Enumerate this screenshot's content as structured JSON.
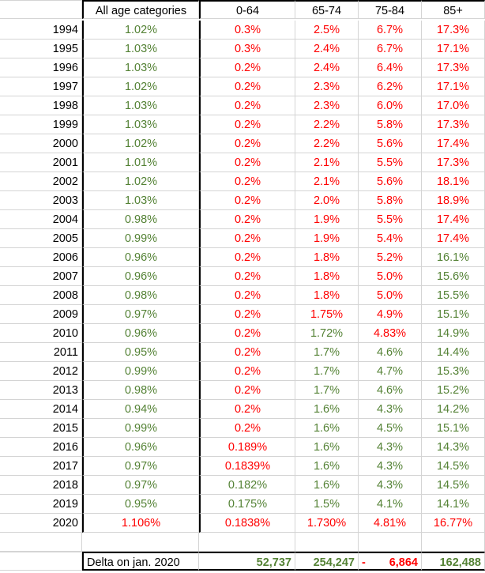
{
  "header": [
    "",
    "All age categories",
    "0-64",
    "65-74",
    "75-84",
    "85+"
  ],
  "colors": {
    "red": "#ff0000",
    "green": "#548235",
    "black": "#000000"
  },
  "rows": [
    {
      "year": "1994",
      "cells": [
        {
          "v": "1.02%",
          "c": "g"
        },
        {
          "v": "0.3%",
          "c": "r"
        },
        {
          "v": "2.5%",
          "c": "r"
        },
        {
          "v": "6.7%",
          "c": "r"
        },
        {
          "v": "17.3%",
          "c": "r"
        }
      ]
    },
    {
      "year": "1995",
      "cells": [
        {
          "v": "1.03%",
          "c": "g"
        },
        {
          "v": "0.3%",
          "c": "r"
        },
        {
          "v": "2.4%",
          "c": "r"
        },
        {
          "v": "6.7%",
          "c": "r"
        },
        {
          "v": "17.1%",
          "c": "r"
        }
      ]
    },
    {
      "year": "1996",
      "cells": [
        {
          "v": "1.03%",
          "c": "g"
        },
        {
          "v": "0.2%",
          "c": "r"
        },
        {
          "v": "2.4%",
          "c": "r"
        },
        {
          "v": "6.4%",
          "c": "r"
        },
        {
          "v": "17.3%",
          "c": "r"
        }
      ]
    },
    {
      "year": "1997",
      "cells": [
        {
          "v": "1.02%",
          "c": "g"
        },
        {
          "v": "0.2%",
          "c": "r"
        },
        {
          "v": "2.3%",
          "c": "r"
        },
        {
          "v": "6.2%",
          "c": "r"
        },
        {
          "v": "17.1%",
          "c": "r"
        }
      ]
    },
    {
      "year": "1998",
      "cells": [
        {
          "v": "1.03%",
          "c": "g"
        },
        {
          "v": "0.2%",
          "c": "r"
        },
        {
          "v": "2.3%",
          "c": "r"
        },
        {
          "v": "6.0%",
          "c": "r"
        },
        {
          "v": "17.0%",
          "c": "r"
        }
      ]
    },
    {
      "year": "1999",
      "cells": [
        {
          "v": "1.03%",
          "c": "g"
        },
        {
          "v": "0.2%",
          "c": "r"
        },
        {
          "v": "2.2%",
          "c": "r"
        },
        {
          "v": "5.8%",
          "c": "r"
        },
        {
          "v": "17.3%",
          "c": "r"
        }
      ]
    },
    {
      "year": "2000",
      "cells": [
        {
          "v": "1.02%",
          "c": "g"
        },
        {
          "v": "0.2%",
          "c": "r"
        },
        {
          "v": "2.2%",
          "c": "r"
        },
        {
          "v": "5.6%",
          "c": "r"
        },
        {
          "v": "17.4%",
          "c": "r"
        }
      ]
    },
    {
      "year": "2001",
      "cells": [
        {
          "v": "1.01%",
          "c": "g"
        },
        {
          "v": "0.2%",
          "c": "r"
        },
        {
          "v": "2.1%",
          "c": "r"
        },
        {
          "v": "5.5%",
          "c": "r"
        },
        {
          "v": "17.3%",
          "c": "r"
        }
      ]
    },
    {
      "year": "2002",
      "cells": [
        {
          "v": "1.02%",
          "c": "g"
        },
        {
          "v": "0.2%",
          "c": "r"
        },
        {
          "v": "2.1%",
          "c": "r"
        },
        {
          "v": "5.6%",
          "c": "r"
        },
        {
          "v": "18.1%",
          "c": "r"
        }
      ]
    },
    {
      "year": "2003",
      "cells": [
        {
          "v": "1.03%",
          "c": "g"
        },
        {
          "v": "0.2%",
          "c": "r"
        },
        {
          "v": "2.0%",
          "c": "r"
        },
        {
          "v": "5.8%",
          "c": "r"
        },
        {
          "v": "18.9%",
          "c": "r"
        }
      ]
    },
    {
      "year": "2004",
      "cells": [
        {
          "v": "0.98%",
          "c": "g"
        },
        {
          "v": "0.2%",
          "c": "r"
        },
        {
          "v": "1.9%",
          "c": "r"
        },
        {
          "v": "5.5%",
          "c": "r"
        },
        {
          "v": "17.4%",
          "c": "r"
        }
      ]
    },
    {
      "year": "2005",
      "cells": [
        {
          "v": "0.99%",
          "c": "g"
        },
        {
          "v": "0.2%",
          "c": "r"
        },
        {
          "v": "1.9%",
          "c": "r"
        },
        {
          "v": "5.4%",
          "c": "r"
        },
        {
          "v": "17.4%",
          "c": "r"
        }
      ]
    },
    {
      "year": "2006",
      "cells": [
        {
          "v": "0.96%",
          "c": "g"
        },
        {
          "v": "0.2%",
          "c": "r"
        },
        {
          "v": "1.8%",
          "c": "r"
        },
        {
          "v": "5.2%",
          "c": "r"
        },
        {
          "v": "16.1%",
          "c": "g"
        }
      ]
    },
    {
      "year": "2007",
      "cells": [
        {
          "v": "0.96%",
          "c": "g"
        },
        {
          "v": "0.2%",
          "c": "r"
        },
        {
          "v": "1.8%",
          "c": "r"
        },
        {
          "v": "5.0%",
          "c": "r"
        },
        {
          "v": "15.6%",
          "c": "g"
        }
      ]
    },
    {
      "year": "2008",
      "cells": [
        {
          "v": "0.98%",
          "c": "g"
        },
        {
          "v": "0.2%",
          "c": "r"
        },
        {
          "v": "1.8%",
          "c": "r"
        },
        {
          "v": "5.0%",
          "c": "r"
        },
        {
          "v": "15.5%",
          "c": "g"
        }
      ]
    },
    {
      "year": "2009",
      "cells": [
        {
          "v": "0.97%",
          "c": "g"
        },
        {
          "v": "0.2%",
          "c": "r"
        },
        {
          "v": "1.75%",
          "c": "r"
        },
        {
          "v": "4.9%",
          "c": "r"
        },
        {
          "v": "15.1%",
          "c": "g"
        }
      ]
    },
    {
      "year": "2010",
      "cells": [
        {
          "v": "0.96%",
          "c": "g"
        },
        {
          "v": "0.2%",
          "c": "r"
        },
        {
          "v": "1.72%",
          "c": "g"
        },
        {
          "v": "4.83%",
          "c": "r"
        },
        {
          "v": "14.9%",
          "c": "g"
        }
      ]
    },
    {
      "year": "2011",
      "cells": [
        {
          "v": "0.95%",
          "c": "g"
        },
        {
          "v": "0.2%",
          "c": "r"
        },
        {
          "v": "1.7%",
          "c": "g"
        },
        {
          "v": "4.6%",
          "c": "g"
        },
        {
          "v": "14.4%",
          "c": "g"
        }
      ]
    },
    {
      "year": "2012",
      "cells": [
        {
          "v": "0.99%",
          "c": "g"
        },
        {
          "v": "0.2%",
          "c": "r"
        },
        {
          "v": "1.7%",
          "c": "g"
        },
        {
          "v": "4.7%",
          "c": "g"
        },
        {
          "v": "15.3%",
          "c": "g"
        }
      ]
    },
    {
      "year": "2013",
      "cells": [
        {
          "v": "0.98%",
          "c": "g"
        },
        {
          "v": "0.2%",
          "c": "r"
        },
        {
          "v": "1.7%",
          "c": "g"
        },
        {
          "v": "4.6%",
          "c": "g"
        },
        {
          "v": "15.2%",
          "c": "g"
        }
      ]
    },
    {
      "year": "2014",
      "cells": [
        {
          "v": "0.94%",
          "c": "g"
        },
        {
          "v": "0.2%",
          "c": "r"
        },
        {
          "v": "1.6%",
          "c": "g"
        },
        {
          "v": "4.3%",
          "c": "g"
        },
        {
          "v": "14.2%",
          "c": "g"
        }
      ]
    },
    {
      "year": "2015",
      "cells": [
        {
          "v": "0.99%",
          "c": "g"
        },
        {
          "v": "0.2%",
          "c": "r"
        },
        {
          "v": "1.6%",
          "c": "g"
        },
        {
          "v": "4.5%",
          "c": "g"
        },
        {
          "v": "15.1%",
          "c": "g"
        }
      ]
    },
    {
      "year": "2016",
      "cells": [
        {
          "v": "0.96%",
          "c": "g"
        },
        {
          "v": "0.189%",
          "c": "r"
        },
        {
          "v": "1.6%",
          "c": "g"
        },
        {
          "v": "4.3%",
          "c": "g"
        },
        {
          "v": "14.3%",
          "c": "g"
        }
      ]
    },
    {
      "year": "2017",
      "cells": [
        {
          "v": "0.97%",
          "c": "g"
        },
        {
          "v": "0.1839%",
          "c": "r"
        },
        {
          "v": "1.6%",
          "c": "g"
        },
        {
          "v": "4.3%",
          "c": "g"
        },
        {
          "v": "14.5%",
          "c": "g"
        }
      ]
    },
    {
      "year": "2018",
      "cells": [
        {
          "v": "0.97%",
          "c": "g"
        },
        {
          "v": "0.182%",
          "c": "g"
        },
        {
          "v": "1.6%",
          "c": "g"
        },
        {
          "v": "4.3%",
          "c": "g"
        },
        {
          "v": "14.5%",
          "c": "g"
        }
      ]
    },
    {
      "year": "2019",
      "cells": [
        {
          "v": "0.95%",
          "c": "g"
        },
        {
          "v": "0.175%",
          "c": "g"
        },
        {
          "v": "1.5%",
          "c": "g"
        },
        {
          "v": "4.1%",
          "c": "g"
        },
        {
          "v": "14.1%",
          "c": "g"
        }
      ]
    },
    {
      "year": "2020",
      "cells": [
        {
          "v": "1.106%",
          "c": "r"
        },
        {
          "v": "0.1838%",
          "c": "r"
        },
        {
          "v": "1.730%",
          "c": "r"
        },
        {
          "v": "4.81%",
          "c": "r"
        },
        {
          "v": "16.77%",
          "c": "r"
        }
      ]
    }
  ],
  "delta": {
    "label": "Delta on jan. 2020",
    "cells": [
      {
        "v": "52,737",
        "c": "g"
      },
      {
        "v": "254,247",
        "c": "g"
      },
      {
        "v": "6,864",
        "c": "r",
        "prefix": "-"
      },
      {
        "v": "162,488",
        "c": "g"
      }
    ]
  }
}
